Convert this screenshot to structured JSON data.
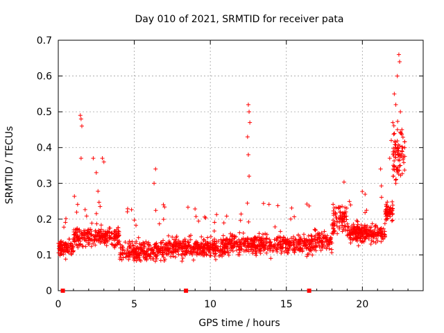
{
  "chart_data": {
    "type": "scatter",
    "title": "Day 010 of 2021, SRMTID for receiver pata",
    "xlabel": "GPS time / hours",
    "ylabel": "SRMTID / TECUs",
    "xlim": [
      0,
      24
    ],
    "ylim": [
      0,
      0.7
    ],
    "xticks": [
      0,
      5,
      10,
      15,
      20
    ],
    "yticks": [
      0,
      0.1,
      0.2,
      0.3,
      0.4,
      0.5,
      0.6,
      0.7
    ],
    "grid": true,
    "marker": "+",
    "series_color": "#ff0000",
    "gap_markers_x": [
      0.3,
      8.4,
      16.5
    ],
    "series": [
      {
        "name": "SRMTID",
        "points": [
          [
            1.45,
            0.49
          ],
          [
            1.5,
            0.48
          ],
          [
            1.55,
            0.46
          ],
          [
            1.5,
            0.37
          ],
          [
            2.3,
            0.37
          ],
          [
            2.5,
            0.33
          ],
          [
            2.9,
            0.37
          ],
          [
            3.0,
            0.36
          ],
          [
            12.5,
            0.52
          ],
          [
            12.55,
            0.5
          ],
          [
            12.6,
            0.47
          ],
          [
            12.45,
            0.43
          ],
          [
            12.5,
            0.38
          ],
          [
            12.55,
            0.32
          ],
          [
            22.4,
            0.66
          ],
          [
            22.45,
            0.64
          ],
          [
            22.3,
            0.6
          ],
          [
            22.1,
            0.55
          ],
          [
            22.2,
            0.52
          ],
          [
            22.5,
            0.5
          ],
          [
            22.0,
            0.47
          ],
          [
            22.6,
            0.45
          ],
          [
            21.9,
            0.42
          ],
          [
            22.3,
            0.4
          ],
          [
            21.8,
            0.37
          ],
          [
            22.5,
            0.35
          ],
          [
            22.2,
            0.3
          ],
          [
            21.2,
            0.34
          ],
          [
            6.4,
            0.34
          ],
          [
            6.3,
            0.3
          ]
        ]
      }
    ]
  }
}
